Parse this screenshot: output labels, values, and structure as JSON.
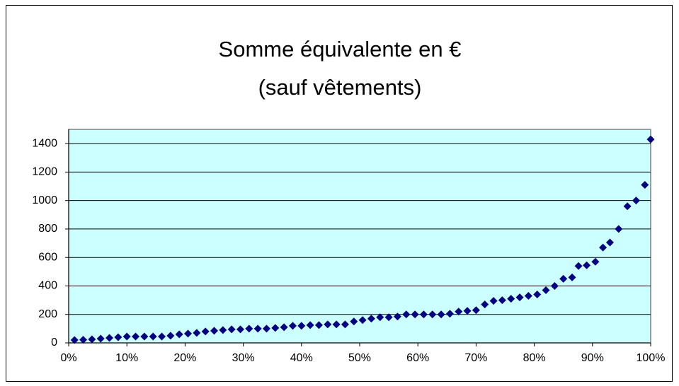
{
  "chart_data": {
    "type": "scatter",
    "title": [
      "Somme équivalente en €",
      "(sauf vêtements)"
    ],
    "color": "#000080",
    "plot_background": "#ccffff",
    "grid": true,
    "x": [
      1,
      2.5,
      4,
      5.5,
      7,
      8.5,
      10,
      11.5,
      13,
      14.5,
      16,
      17.5,
      19,
      20.5,
      22,
      23.5,
      25,
      26.5,
      28,
      29.5,
      31,
      32.5,
      34,
      35.5,
      37,
      38.5,
      40,
      41.5,
      43,
      44.5,
      46,
      47.5,
      49,
      50.5,
      52,
      53.5,
      55,
      56.5,
      58,
      59.5,
      61,
      62.5,
      64,
      65.5,
      67,
      68.5,
      70,
      71.5,
      73,
      74.5,
      76,
      77.5,
      79,
      80.5,
      82,
      83.5,
      85,
      86.5,
      87.6,
      89,
      90.5,
      91.8,
      93,
      94.5,
      96,
      97.5,
      99,
      100
    ],
    "values": [
      20,
      22,
      25,
      30,
      35,
      40,
      45,
      45,
      45,
      45,
      45,
      50,
      60,
      65,
      70,
      80,
      85,
      90,
      95,
      95,
      100,
      100,
      100,
      105,
      110,
      120,
      120,
      125,
      125,
      130,
      130,
      130,
      150,
      160,
      170,
      180,
      180,
      185,
      200,
      200,
      200,
      200,
      200,
      205,
      220,
      225,
      230,
      270,
      295,
      300,
      310,
      320,
      330,
      340,
      370,
      400,
      450,
      460,
      540,
      545,
      570,
      670,
      705,
      800,
      960,
      1000,
      1110,
      1430
    ],
    "xlim": [
      0,
      100
    ],
    "xticks": [
      {
        "value": 0,
        "label": "0%"
      },
      {
        "value": 10,
        "label": "10%"
      },
      {
        "value": 20,
        "label": "20%"
      },
      {
        "value": 30,
        "label": "30%"
      },
      {
        "value": 40,
        "label": "40%"
      },
      {
        "value": 50,
        "label": "50%"
      },
      {
        "value": 60,
        "label": "60%"
      },
      {
        "value": 70,
        "label": "70%"
      },
      {
        "value": 80,
        "label": "80%"
      },
      {
        "value": 90,
        "label": "90%"
      },
      {
        "value": 100,
        "label": "100%"
      }
    ],
    "ylim": [
      0,
      1500
    ],
    "yticks": [
      0,
      200,
      400,
      600,
      800,
      1000,
      1200,
      1400
    ]
  }
}
